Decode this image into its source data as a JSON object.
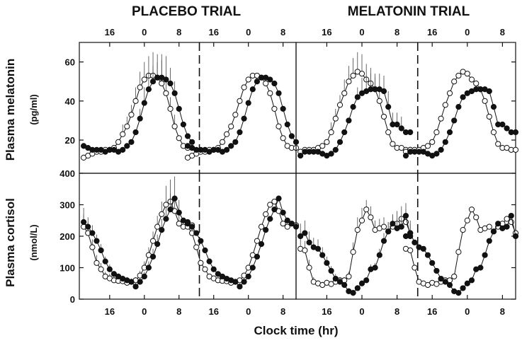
{
  "chart_data": {
    "type": "scatter",
    "trials": [
      {
        "name": "PLACEBO TRIAL"
      },
      {
        "name": "MELATONIN TRIAL"
      }
    ],
    "xlabel": "Clock time (hr)",
    "x_ticks": [
      {
        "label": "16",
        "h": 16
      },
      {
        "label": "0",
        "h": 24
      },
      {
        "label": "8",
        "h": 32
      },
      {
        "label": "16",
        "h": 40
      },
      {
        "label": "0",
        "h": 48
      },
      {
        "label": "8",
        "h": 56
      }
    ],
    "xlim": [
      9,
      59
    ],
    "divider_h": 36.7,
    "rows": [
      {
        "ylabel": "Plasma melatonin",
        "yunit": "(pg/ml)",
        "ylim": [
          3,
          70
        ],
        "y_ticks": [
          20,
          40,
          60
        ],
        "panels": [
          {
            "trial": "PLACEBO TRIAL",
            "series": [
              {
                "marker": "open",
                "x": [
                  10,
                  11,
                  12,
                  13,
                  14,
                  15,
                  16,
                  17,
                  18,
                  19,
                  20,
                  21,
                  22,
                  23,
                  24,
                  25,
                  26,
                  27,
                  28,
                  29,
                  30,
                  31,
                  32,
                  33,
                  34,
                  35
                ],
                "y": [
                  11,
                  12,
                  13,
                  14,
                  14,
                  15,
                  15,
                  16,
                  19,
                  23,
                  27,
                  33,
                  40,
                  47,
                  51,
                  53,
                  53,
                  52,
                  49,
                  44,
                  36,
                  27,
                  21,
                  17,
                  16,
                  16
                ],
                "err": [
                  0,
                  0,
                  0,
                  0,
                  0,
                  0,
                  0,
                  0,
                  0,
                  5,
                  5,
                  5,
                  7,
                  8,
                  9,
                  10,
                  12,
                  12,
                  12,
                  8,
                  6,
                  6,
                  0,
                  0,
                  0,
                  0
                ],
                "h1": 35.5,
                "shift": 24
              },
              {
                "marker": "filled",
                "x": [
                  10,
                  11,
                  12,
                  13,
                  14,
                  15,
                  16,
                  17,
                  18,
                  19,
                  20,
                  21,
                  22,
                  23,
                  24,
                  25,
                  26,
                  27,
                  28,
                  29,
                  30,
                  31,
                  32,
                  33,
                  34,
                  35
                ],
                "y": [
                  17,
                  16,
                  15,
                  15,
                  15,
                  14,
                  15,
                  15,
                  14,
                  15,
                  17,
                  19,
                  24,
                  31,
                  39,
                  46,
                  50,
                  52,
                  52,
                  51,
                  49,
                  44,
                  36,
                  28,
                  22,
                  19
                ],
                "err": [
                  0,
                  0,
                  0,
                  0,
                  0,
                  0,
                  0,
                  0,
                  0,
                  0,
                  0,
                  0,
                  0,
                  5,
                  8,
                  8,
                  8,
                  8,
                  12,
                  12,
                  8,
                  6,
                  0,
                  0,
                  0,
                  0
                ],
                "h1": 35.5,
                "shift": 24
              }
            ]
          },
          {
            "trial": "MELATONIN TRIAL",
            "series": [
              {
                "marker": "open",
                "x": [
                  10,
                  11,
                  12,
                  13,
                  14,
                  15,
                  16,
                  17,
                  18,
                  19,
                  20,
                  21,
                  22,
                  23,
                  24,
                  25,
                  26,
                  27,
                  28,
                  29,
                  30,
                  31,
                  32,
                  33,
                  34,
                  35
                ],
                "y": [
                  14,
                  15,
                  15,
                  15,
                  16,
                  17,
                  19,
                  24,
                  31,
                  38,
                  44,
                  50,
                  53,
                  55,
                  54,
                  51,
                  49,
                  46,
                  40,
                  32,
                  24,
                  18,
                  16,
                  16,
                  15,
                  15
                ],
                "err": [
                  0,
                  0,
                  0,
                  0,
                  0,
                  0,
                  0,
                  5,
                  5,
                  5,
                  7,
                  8,
                  9,
                  10,
                  10,
                  8,
                  8,
                  6,
                  5,
                  0,
                  0,
                  0,
                  0,
                  0,
                  0,
                  0
                ],
                "h1": 35.5,
                "shift": 24
              },
              {
                "marker": "filled",
                "x": [
                  10,
                  11,
                  12,
                  13,
                  14,
                  15,
                  16,
                  17,
                  18,
                  19,
                  20,
                  21,
                  22,
                  23,
                  24,
                  25,
                  26,
                  27,
                  28,
                  29,
                  30,
                  31,
                  32,
                  33,
                  34,
                  35
                ],
                "y": [
                  12,
                  14,
                  14,
                  14,
                  14,
                  13,
                  12,
                  13,
                  15,
                  19,
                  24,
                  30,
                  37,
                  42,
                  44,
                  45,
                  46,
                  46,
                  46,
                  45,
                  37,
                  28,
                  28,
                  26,
                  24,
                  24
                ],
                "err": [
                  0,
                  0,
                  0,
                  0,
                  0,
                  0,
                  0,
                  0,
                  0,
                  0,
                  0,
                  0,
                  0,
                  5,
                  8,
                  8,
                  8,
                  8,
                  8,
                  8,
                  8,
                  6,
                  6,
                  6,
                  0,
                  0
                ],
                "h1": 35.5,
                "shift": 24
              }
            ]
          }
        ]
      },
      {
        "ylabel": "Plasma cortisol",
        "yunit": "(nmol/L)",
        "ylim": [
          0,
          400
        ],
        "y_ticks": [
          0,
          100,
          200,
          300,
          400
        ],
        "panels": [
          {
            "trial": "PLACEBO TRIAL",
            "series": [
              {
                "marker": "open",
                "x": [
                  10,
                  11,
                  12,
                  13,
                  14,
                  15,
                  16,
                  17,
                  18,
                  19,
                  20,
                  21,
                  22,
                  23,
                  24,
                  25,
                  26,
                  27,
                  28,
                  29,
                  30,
                  31,
                  32,
                  33,
                  34,
                  35
                ],
                "y": [
                  230,
                  210,
                  165,
                  115,
                  95,
                  72,
                  66,
                  60,
                  58,
                  57,
                  52,
                  55,
                  60,
                  75,
                  100,
                  140,
                  185,
                  230,
                  270,
                  300,
                  310,
                  280,
                  240,
                  230,
                  240,
                  235
                ],
                "err": [
                  40,
                  35,
                  25,
                  25,
                  20,
                  15,
                  15,
                  10,
                  10,
                  10,
                  10,
                  10,
                  10,
                  15,
                  20,
                  25,
                  30,
                  35,
                  40,
                  60,
                  70,
                  40,
                  30,
                  0,
                  0,
                  0
                ],
                "h1": 35.5,
                "shift": 24
              },
              {
                "marker": "filled",
                "x": [
                  10,
                  11,
                  12,
                  13,
                  14,
                  15,
                  16,
                  17,
                  18,
                  19,
                  20,
                  21,
                  22,
                  23,
                  24,
                  25,
                  26,
                  27,
                  28,
                  29,
                  30,
                  31,
                  32,
                  33,
                  34,
                  35
                ],
                "y": [
                  245,
                  230,
                  210,
                  185,
                  155,
                  120,
                  95,
                  80,
                  72,
                  65,
                  60,
                  55,
                  40,
                  55,
                  72,
                  100,
                  135,
                  175,
                  220,
                  255,
                  285,
                  320,
                  275,
                  250,
                  240,
                  230
                ],
                "err": [
                  45,
                  30,
                  25,
                  20,
                  20,
                  15,
                  15,
                  10,
                  10,
                  10,
                  10,
                  10,
                  10,
                  10,
                  15,
                  20,
                  25,
                  30,
                  35,
                  40,
                  50,
                  70,
                  40,
                  0,
                  0,
                  0
                ],
                "h1": 35.5,
                "shift": 24
              }
            ]
          },
          {
            "trial": "MELATONIN TRIAL",
            "series": [
              {
                "marker": "open",
                "x": [
                  10,
                  11,
                  12,
                  13,
                  14,
                  15,
                  16,
                  17,
                  18,
                  19,
                  20,
                  21,
                  22,
                  23,
                  24,
                  25,
                  26,
                  27,
                  28,
                  29,
                  30,
                  31,
                  32,
                  33,
                  34,
                  35
                ],
                "y": [
                  160,
                  155,
                  100,
                  55,
                  50,
                  45,
                  52,
                  48,
                  55,
                  60,
                  60,
                  72,
                  150,
                  220,
                  250,
                  285,
                  260,
                  220,
                  225,
                  230,
                  215,
                  230,
                  240,
                  255,
                  245,
                  210
                ],
                "err": [
                  35,
                  30,
                  25,
                  15,
                  10,
                  10,
                  10,
                  10,
                  10,
                  10,
                  10,
                  15,
                  30,
                  40,
                  40,
                  30,
                  35,
                  30,
                  30,
                  30,
                  30,
                  35,
                  40,
                  40,
                  40,
                  40
                ],
                "h1": 35.5,
                "shift": 24
              },
              {
                "marker": "filled",
                "x": [
                  10,
                  11,
                  12,
                  13,
                  14,
                  15,
                  16,
                  17,
                  18,
                  19,
                  20,
                  21,
                  22,
                  23,
                  24,
                  25,
                  26,
                  27,
                  28,
                  29,
                  30,
                  31,
                  32,
                  33,
                  34,
                  35
                ],
                "y": [
                  200,
                  210,
                  180,
                  165,
                  160,
                  140,
                  115,
                  90,
                  65,
                  55,
                  45,
                  25,
                  20,
                  35,
                  50,
                  60,
                  95,
                  100,
                  140,
                  185,
                  215,
                  240,
                  225,
                  230,
                  265,
                  200
                ],
                "err": [
                  40,
                  40,
                  35,
                  30,
                  30,
                  25,
                  20,
                  15,
                  15,
                  15,
                  10,
                  10,
                  10,
                  10,
                  10,
                  10,
                  15,
                  15,
                  20,
                  25,
                  30,
                  30,
                  30,
                  30,
                  40,
                  40
                ],
                "h1": 35.5,
                "shift": 24
              }
            ]
          }
        ]
      }
    ]
  }
}
